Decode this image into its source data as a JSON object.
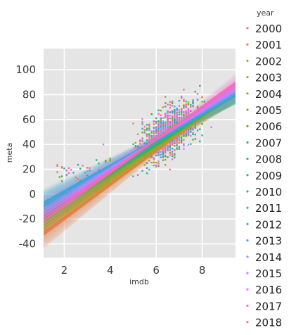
{
  "chart_data": {
    "type": "scatter",
    "xlabel": "imdb",
    "ylabel": "meta",
    "xlim": [
      1.1,
      9.45
    ],
    "ylim": [
      -51,
      117
    ],
    "xticks": [
      2,
      4,
      6,
      8
    ],
    "yticks": [
      -40,
      -20,
      0,
      20,
      40,
      60,
      80,
      100
    ],
    "grid": true,
    "regression_lines": true,
    "legend": {
      "title": "year",
      "placement": "right-outside"
    },
    "series": [
      {
        "name": "2000",
        "color": "#f77189",
        "slope": 13.8,
        "intercept": -48
      },
      {
        "name": "2001",
        "color": "#f47b44",
        "slope": 13.6,
        "intercept": -47
      },
      {
        "name": "2002",
        "color": "#d38a31",
        "slope": 13.3,
        "intercept": -45
      },
      {
        "name": "2003",
        "color": "#bb9832",
        "slope": 13.0,
        "intercept": -42
      },
      {
        "name": "2004",
        "color": "#a59e31",
        "slope": 12.6,
        "intercept": -39
      },
      {
        "name": "2005",
        "color": "#8ea531",
        "slope": 12.3,
        "intercept": -36
      },
      {
        "name": "2006",
        "color": "#5cae31",
        "slope": 12.0,
        "intercept": -33
      },
      {
        "name": "2007",
        "color": "#32b166",
        "slope": 11.6,
        "intercept": -30
      },
      {
        "name": "2008",
        "color": "#34ae8d",
        "slope": 11.3,
        "intercept": -27
      },
      {
        "name": "2009",
        "color": "#35ac9e",
        "slope": 11.0,
        "intercept": -24
      },
      {
        "name": "2010",
        "color": "#36aaac",
        "slope": 10.7,
        "intercept": -22
      },
      {
        "name": "2011",
        "color": "#38a8bb",
        "slope": 10.5,
        "intercept": -20
      },
      {
        "name": "2012",
        "color": "#3aa5d0",
        "slope": 10.3,
        "intercept": -18
      },
      {
        "name": "2013",
        "color": "#519ef3",
        "slope": 10.8,
        "intercept": -21
      },
      {
        "name": "2014",
        "color": "#9a91f4",
        "slope": 11.3,
        "intercept": -24
      },
      {
        "name": "2015",
        "color": "#c683f4",
        "slope": 11.8,
        "intercept": -27
      },
      {
        "name": "2016",
        "color": "#e56ff3",
        "slope": 12.3,
        "intercept": -30
      },
      {
        "name": "2017",
        "color": "#f464d6",
        "slope": 12.8,
        "intercept": -33
      },
      {
        "name": "2018",
        "color": "#f66ba9",
        "slope": 13.3,
        "intercept": -36
      }
    ]
  }
}
